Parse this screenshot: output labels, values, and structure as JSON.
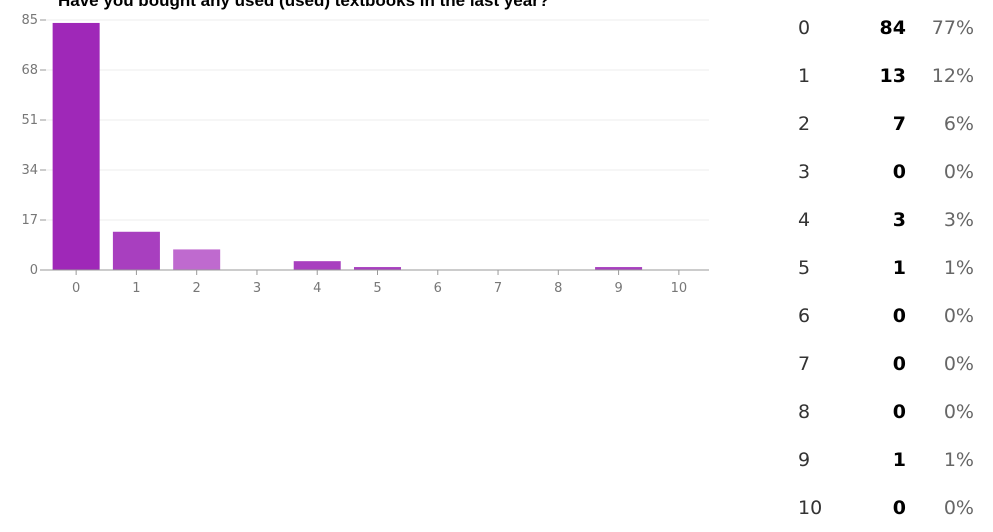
{
  "chart_data": {
    "type": "bar",
    "title": "Have you bought any used (used) textbooks in the last year?",
    "categories": [
      "0",
      "1",
      "2",
      "3",
      "4",
      "5",
      "6",
      "7",
      "8",
      "9",
      "10"
    ],
    "values": [
      84,
      13,
      7,
      0,
      3,
      1,
      0,
      0,
      0,
      1,
      0
    ],
    "percentages": [
      "77%",
      "12%",
      "6%",
      "0%",
      "3%",
      "1%",
      "0%",
      "0%",
      "0%",
      "1%",
      "0%"
    ],
    "yticks": [
      0,
      17,
      34,
      51,
      68,
      85
    ],
    "ylim": [
      0,
      85
    ],
    "xlabel": "",
    "ylabel": "",
    "colors": [
      "#9f28b8",
      "#a83fbf",
      "#bf6acf"
    ]
  }
}
